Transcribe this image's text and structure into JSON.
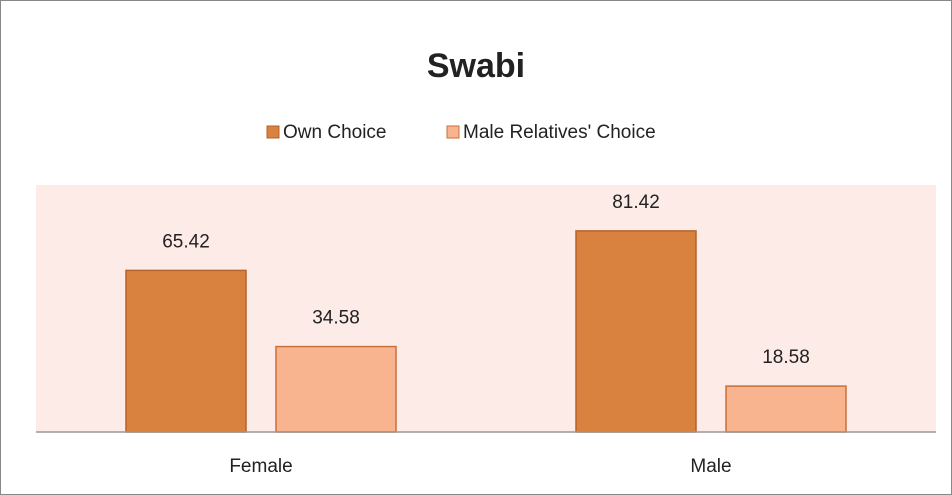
{
  "chart_data": {
    "type": "bar",
    "title": "Swabi",
    "categories": [
      "Female",
      "Male"
    ],
    "series": [
      {
        "name": "Own Choice",
        "color": "#d9813f",
        "values": [
          65.42,
          81.42
        ]
      },
      {
        "name": "Male Relatives' Choice",
        "color": "#f8b48e",
        "values": [
          34.58,
          18.58
        ]
      }
    ],
    "ylim": [
      0,
      100
    ],
    "legend": "top"
  }
}
